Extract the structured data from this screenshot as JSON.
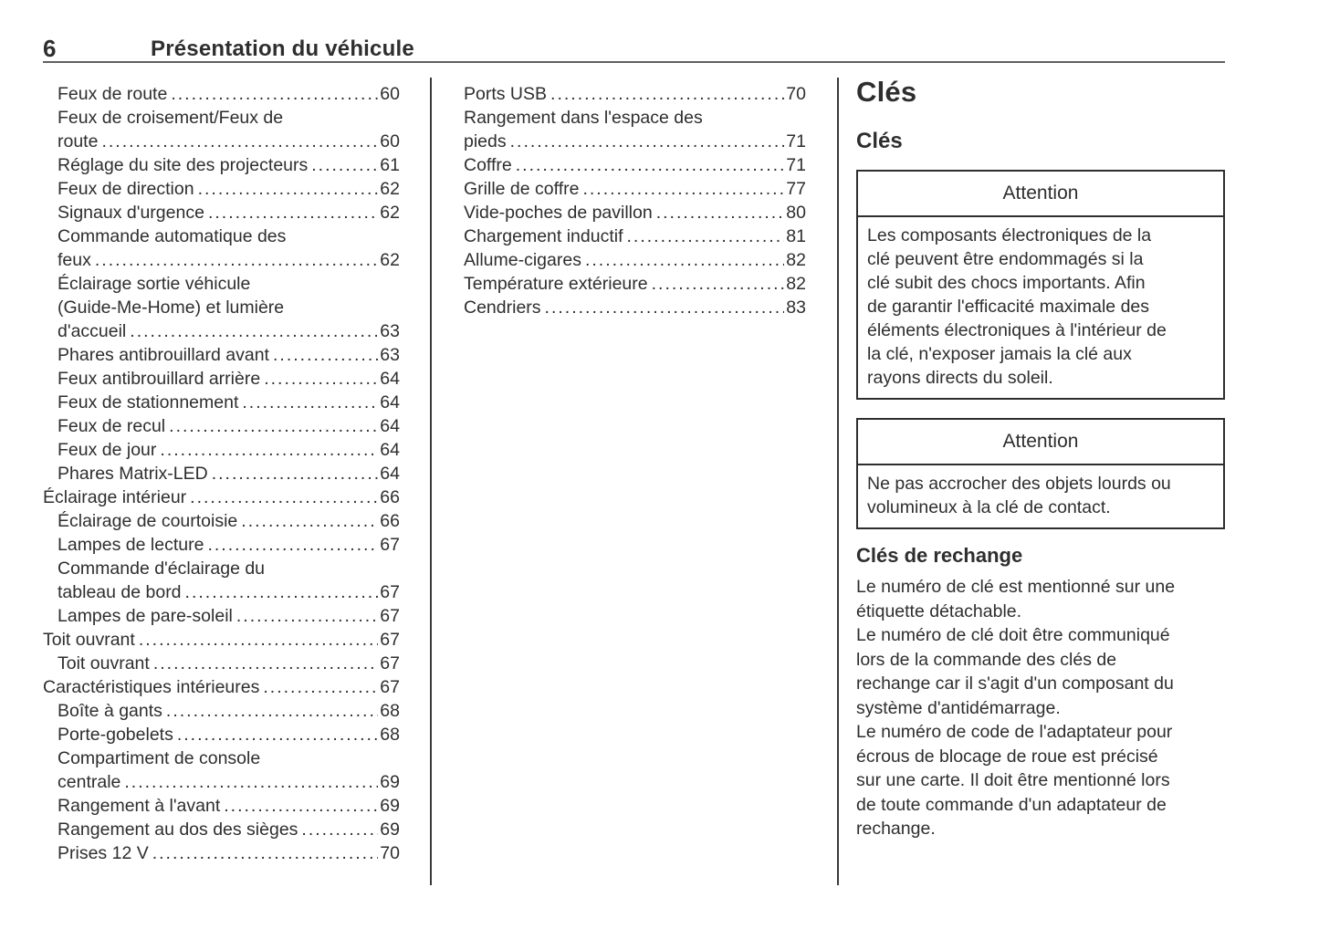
{
  "header": {
    "page_number": "6",
    "title": "Présentation du véhicule"
  },
  "toc": {
    "column1": [
      {
        "text": "Feux de route",
        "page": "60",
        "indent": 1
      },
      {
        "text": "Feux de croisement/Feux de",
        "indent": 1
      },
      {
        "text": "route",
        "page": "60",
        "indent": 1
      },
      {
        "text": "Réglage du site des projecteurs",
        "page": "61",
        "indent": 1
      },
      {
        "text": "Feux de direction",
        "page": "62",
        "indent": 1
      },
      {
        "text": "Signaux d'urgence",
        "page": "62",
        "indent": 1
      },
      {
        "text": "Commande automatique des",
        "indent": 1
      },
      {
        "text": "feux",
        "page": "62",
        "indent": 1
      },
      {
        "text": "Éclairage sortie véhicule",
        "indent": 1
      },
      {
        "text": "(Guide-Me-Home) et lumière",
        "indent": 1
      },
      {
        "text": "d'accueil",
        "page": "63",
        "indent": 1
      },
      {
        "text": "Phares antibrouillard avant",
        "page": "63",
        "indent": 1
      },
      {
        "text": "Feux antibrouillard arrière",
        "page": "64",
        "indent": 1
      },
      {
        "text": "Feux de stationnement",
        "page": "64",
        "indent": 1
      },
      {
        "text": "Feux de recul",
        "page": "64",
        "indent": 1
      },
      {
        "text": "Feux de jour",
        "page": "64",
        "indent": 1
      },
      {
        "text": "Phares Matrix-LED",
        "page": "64",
        "indent": 1
      },
      {
        "text": "Éclairage intérieur",
        "page": "66",
        "indent": 0
      },
      {
        "text": "Éclairage de courtoisie",
        "page": "66",
        "indent": 1
      },
      {
        "text": "Lampes de lecture",
        "page": "67",
        "indent": 1
      },
      {
        "text": "Commande d'éclairage du",
        "indent": 1
      },
      {
        "text": "tableau de bord",
        "page": "67",
        "indent": 1
      },
      {
        "text": "Lampes de pare-soleil",
        "page": "67",
        "indent": 1
      },
      {
        "text": "Toit ouvrant",
        "page": "67",
        "indent": 0
      },
      {
        "text": "Toit ouvrant",
        "page": "67",
        "indent": 1
      },
      {
        "text": "Caractéristiques intérieures",
        "page": "67",
        "indent": 0
      },
      {
        "text": "Boîte à gants",
        "page": "68",
        "indent": 1
      },
      {
        "text": "Porte-gobelets",
        "page": "68",
        "indent": 1
      },
      {
        "text": "Compartiment de console",
        "indent": 1
      },
      {
        "text": "centrale",
        "page": "69",
        "indent": 1
      },
      {
        "text": "Rangement à l'avant",
        "page": "69",
        "indent": 1
      },
      {
        "text": "Rangement au dos des sièges",
        "page": "69",
        "indent": 1
      },
      {
        "text": "Prises 12 V",
        "page": "70",
        "indent": 1
      }
    ],
    "column2": [
      {
        "text": "Ports USB",
        "page": "70",
        "indent": 0
      },
      {
        "text": "Rangement dans l'espace des",
        "indent": 0
      },
      {
        "text": "pieds",
        "page": "71",
        "indent": 0
      },
      {
        "text": "Coffre",
        "page": "71",
        "indent": 0
      },
      {
        "text": "Grille de coffre",
        "page": "77",
        "indent": 0
      },
      {
        "text": "Vide-poches de pavillon",
        "page": "80",
        "indent": 0
      },
      {
        "text": "Chargement inductif",
        "page": "81",
        "indent": 0
      },
      {
        "text": "Allume-cigares",
        "page": "82",
        "indent": 0
      },
      {
        "text": "Température extérieure",
        "page": "82",
        "indent": 0
      },
      {
        "text": "Cendriers",
        "page": "83",
        "indent": 0
      }
    ]
  },
  "keys": {
    "title": "Clés",
    "subtitle": "Clés",
    "caution1": {
      "title": "Attention",
      "body": "Les composants électroniques de la\nclé peuvent être endommagés si la\nclé subit des chocs importants. Afin\nde garantir l'efficacité maximale des\néléments électroniques à l'intérieur de\nla clé, n'exposer jamais la clé aux\nrayons directs du soleil."
    },
    "caution2": {
      "title": "Attention",
      "body": "Ne pas accrocher des objets lourds ou\nvolumineux à la clé de contact."
    },
    "spare_heading": "Clés de rechange",
    "paragraphs": [
      "Le numéro de clé est mentionné sur une\nétiquette détachable.",
      "Le numéro de clé doit être communiqué\nlors de la commande des clés de\nrechange car il s'agit d'un composant du\nsystème d'antidémarrage.",
      "Le numéro de code de l'adaptateur pour\nécrous de blocage de roue est précisé\nsur une carte. Il doit être mentionné lors\nde toute commande d'un adaptateur de\nrechange."
    ]
  },
  "colors": {
    "text": "#2e2e2e",
    "header_rule": "#606060",
    "column_separator": "#3a3a3a",
    "caution_border": "#2e2e2e",
    "background": "#ffffff"
  }
}
